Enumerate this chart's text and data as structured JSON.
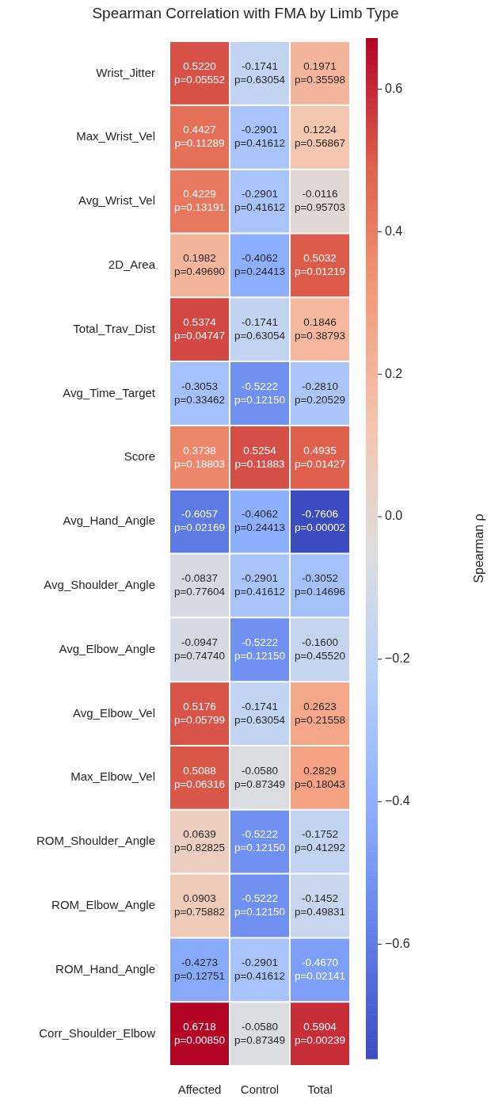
{
  "chart_data": {
    "type": "heatmap",
    "title": "Spearman Correlation with FMA by Limb Type",
    "clabel": "Spearman ρ",
    "categories": [
      "Affected",
      "Control",
      "Total"
    ],
    "y_categories": [
      "Wrist_Jitter",
      "Max_Wrist_Vel",
      "Avg_Wrist_Vel",
      "2D_Area",
      "Total_Trav_Dist",
      "Avg_Time_Target",
      "Score",
      "Avg_Hand_Angle",
      "Avg_Shoulder_Angle",
      "Avg_Elbow_Angle",
      "Avg_Elbow_Vel",
      "Max_Elbow_Vel",
      "ROM_Shoulder_Angle",
      "ROM_Elbow_Angle",
      "ROM_Hand_Angle",
      "Corr_Shoulder_Elbow"
    ],
    "cells": [
      [
        0.522,
        -0.1741,
        0.1971
      ],
      [
        0.4427,
        -0.2901,
        0.1224
      ],
      [
        0.4229,
        -0.2901,
        -0.0116
      ],
      [
        0.1982,
        -0.4062,
        0.5032
      ],
      [
        0.5374,
        -0.1741,
        0.1846
      ],
      [
        -0.3053,
        -0.5222,
        -0.281
      ],
      [
        0.3738,
        0.5254,
        0.4935
      ],
      [
        -0.6057,
        -0.4062,
        -0.7606
      ],
      [
        -0.0837,
        -0.2901,
        -0.3052
      ],
      [
        -0.0947,
        -0.5222,
        -0.16
      ],
      [
        0.5176,
        -0.1741,
        0.2623
      ],
      [
        0.5088,
        -0.058,
        0.2829
      ],
      [
        0.0639,
        -0.5222,
        -0.1752
      ],
      [
        0.0903,
        -0.5222,
        -0.1452
      ],
      [
        -0.4273,
        -0.2901,
        -0.467
      ],
      [
        0.6718,
        -0.058,
        0.5904
      ]
    ],
    "cell_labels": [
      [
        "0.5220\np=0.05552",
        "-0.1741\np=0.63054",
        "0.1971\np=0.35598"
      ],
      [
        "0.4427\np=0.11289",
        "-0.2901\np=0.41612",
        "0.1224\np=0.56867"
      ],
      [
        "0.4229\np=0.13191",
        "-0.2901\np=0.41612",
        "-0.0116\np=0.95703"
      ],
      [
        "0.1982\np=0.49690",
        "-0.4062\np=0.24413",
        "0.5032\np=0.01219"
      ],
      [
        "0.5374\np=0.04747",
        "-0.1741\np=0.63054",
        "0.1846\np=0.38793"
      ],
      [
        "-0.3053\np=0.33462",
        "-0.5222\np=0.12150",
        "-0.2810\np=0.20529"
      ],
      [
        "0.3738\np=0.18803",
        "0.5254\np=0.11883",
        "0.4935\np=0.01427"
      ],
      [
        "-0.6057\np=0.02169",
        "-0.4062\np=0.24413",
        "-0.7606\np=0.00002"
      ],
      [
        "-0.0837\np=0.77604",
        "-0.2901\np=0.41612",
        "-0.3052\np=0.14696"
      ],
      [
        "-0.0947\np=0.74740",
        "-0.5222\np=0.12150",
        "-0.1600\np=0.45520"
      ],
      [
        "0.5176\np=0.05799",
        "-0.1741\np=0.63054",
        "0.2623\np=0.21558"
      ],
      [
        "0.5088\np=0.06316",
        "-0.0580\np=0.87349",
        "0.2829\np=0.18043"
      ],
      [
        "0.0639\np=0.82825",
        "-0.5222\np=0.12150",
        "-0.1752\np=0.41292"
      ],
      [
        "0.0903\np=0.75882",
        "-0.5222\np=0.12150",
        "-0.1452\np=0.49831"
      ],
      [
        "-0.4273\np=0.12751",
        "-0.2901\np=0.41612",
        "-0.4670\np=0.02141"
      ],
      [
        "0.6718\np=0.00850",
        "-0.0580\np=0.87349",
        "0.5904\np=0.00239"
      ]
    ],
    "clim": [
      -0.7606,
      0.6718
    ],
    "cticks": [
      {
        "value": -0.6,
        "label": "−0.6"
      },
      {
        "value": -0.4,
        "label": "−0.4"
      },
      {
        "value": -0.2,
        "label": "−0.2"
      },
      {
        "value": 0,
        "label": "0.0"
      },
      {
        "value": 0.2,
        "label": "0.2"
      },
      {
        "value": 0.4,
        "label": "0.4"
      },
      {
        "value": 0.6,
        "label": "0.6"
      }
    ]
  }
}
